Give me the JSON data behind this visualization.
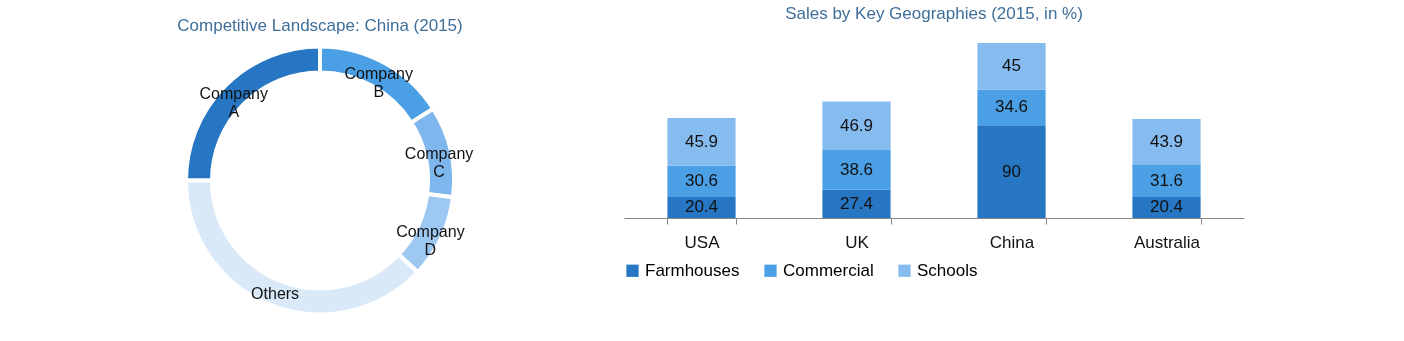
{
  "chart_data": [
    {
      "type": "donut",
      "title": "Competitive Landscape: China (2015)",
      "categories": [
        "Company A",
        "Company B",
        "Company C",
        "Company D",
        "Others"
      ],
      "values": [
        25,
        16,
        11,
        10,
        38
      ],
      "colors": [
        "#2676c3",
        "#4b9fe4",
        "#7db7ee",
        "#9dc8f2",
        "#d9e9f8"
      ],
      "legend": false
    },
    {
      "type": "bar",
      "title": "Sales by Key Geographies (2015, in %)",
      "stacked": true,
      "categories": [
        "USA",
        "UK",
        "China",
        "Australia"
      ],
      "series": [
        {
          "name": "Farmhouses",
          "color": "#2676c3",
          "values": [
            20.4,
            27.4,
            90,
            20.4
          ]
        },
        {
          "name": "Commercial",
          "color": "#4b9fe4",
          "values": [
            30.6,
            38.6,
            34.6,
            31.6
          ]
        },
        {
          "name": "Schools",
          "color": "#86bbf0",
          "values": [
            45.9,
            46.9,
            45,
            43.9
          ]
        }
      ],
      "data_labels": true,
      "legend": "bottom",
      "grid": false
    }
  ]
}
